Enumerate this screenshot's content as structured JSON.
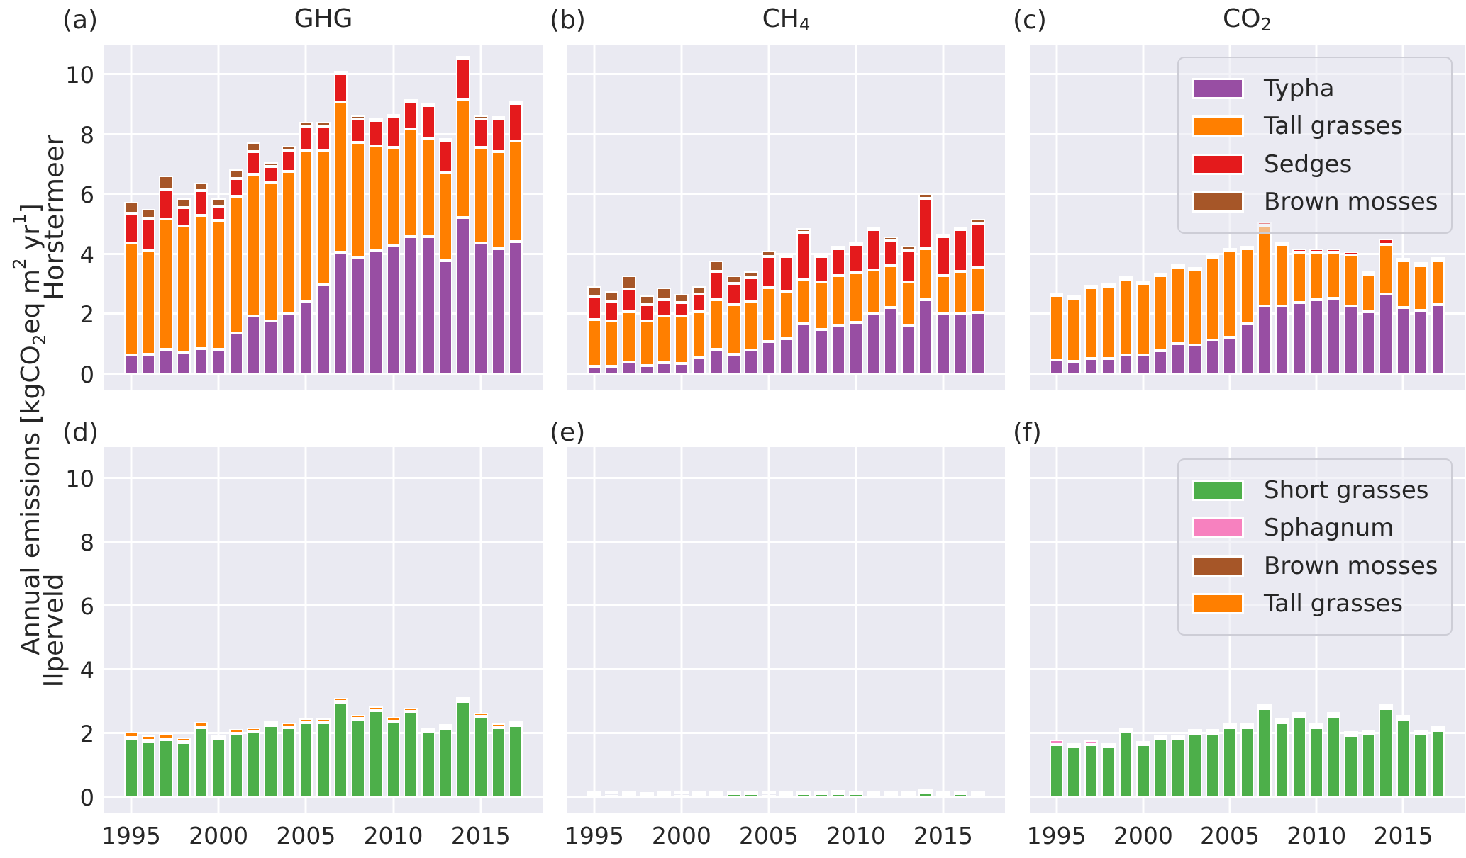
{
  "row_labels": {
    "top": "Horstermeer",
    "bottom": "Ilperveld"
  },
  "ylabel": {
    "p1": "Annual emissions [kgCO",
    "s1": "2",
    "p2": "eq m",
    "s2": "2",
    "p3": " yr",
    "s3": "1",
    "p4": "]"
  },
  "titles": {
    "a": {
      "text": "GHG",
      "sub": ""
    },
    "b": {
      "text": "CH",
      "sub": "4"
    },
    "c": {
      "text": "CO",
      "sub": "2"
    }
  },
  "letters": {
    "a": "(a)",
    "b": "(b)",
    "c": "(c)",
    "d": "(d)",
    "e": "(e)",
    "f": "(f)"
  },
  "colors": {
    "background": "#ffffff",
    "panel_bg": "#eaeaf2",
    "grid": "#ffffff",
    "text": "#262626",
    "typha": "#984ea3",
    "tall_grasses": "#ff7f00",
    "sedges": "#e41a1c",
    "brown_mosses": "#a65628",
    "short_grasses": "#4daf4a",
    "sphagnum": "#f781bf"
  },
  "legend_top": [
    {
      "label": "Typha",
      "color_key": "typha"
    },
    {
      "label": "Tall grasses",
      "color_key": "tall_grasses"
    },
    {
      "label": "Sedges",
      "color_key": "sedges"
    },
    {
      "label": "Brown mosses",
      "color_key": "brown_mosses"
    }
  ],
  "legend_bottom": [
    {
      "label": "Short grasses",
      "color_key": "short_grasses"
    },
    {
      "label": "Sphagnum",
      "color_key": "sphagnum"
    },
    {
      "label": "Brown mosses",
      "color_key": "brown_mosses"
    },
    {
      "label": "Tall grasses",
      "color_key": "tall_grasses"
    }
  ],
  "axes": {
    "ylim": [
      -0.5,
      11.0
    ],
    "yticks": [
      0,
      2,
      4,
      6,
      8,
      10
    ],
    "xticks": [
      1995,
      2000,
      2005,
      2010,
      2015
    ],
    "x_offset_steps": 1.54,
    "x_total_steps": 25.08,
    "bar_width_steps": 0.8,
    "grid": true
  },
  "chart_data": [
    {
      "id": "a",
      "type": "bar",
      "stacked": true,
      "site": "Horstermeer",
      "gas": "GHG",
      "categories": [
        1995,
        1996,
        1997,
        1998,
        1999,
        2000,
        2001,
        2002,
        2003,
        2004,
        2005,
        2006,
        2007,
        2008,
        2009,
        2010,
        2011,
        2012,
        2013,
        2014,
        2015,
        2016,
        2017
      ],
      "series": [
        {
          "name": "Typha",
          "color_key": "typha",
          "values": [
            0.65,
            0.68,
            0.85,
            0.72,
            0.88,
            0.85,
            1.4,
            1.95,
            1.8,
            2.05,
            2.45,
            3.0,
            4.1,
            3.9,
            4.15,
            4.3,
            4.6,
            4.6,
            3.8,
            5.25,
            4.4,
            4.2,
            4.45
          ]
        },
        {
          "name": "Tall grasses",
          "color_key": "tall_grasses",
          "values": [
            3.75,
            3.45,
            4.35,
            4.25,
            4.45,
            4.3,
            4.55,
            4.75,
            4.6,
            4.75,
            5.05,
            4.5,
            5.0,
            3.85,
            3.5,
            3.3,
            3.6,
            3.3,
            2.95,
            3.95,
            3.2,
            3.25,
            3.35
          ]
        },
        {
          "name": "Sedges",
          "color_key": "sedges",
          "values": [
            1.0,
            1.1,
            1.0,
            0.62,
            0.83,
            0.45,
            0.6,
            0.75,
            0.55,
            0.7,
            0.8,
            0.8,
            0.95,
            0.8,
            0.85,
            1.0,
            0.9,
            1.1,
            1.05,
            1.35,
            0.95,
            1.1,
            1.25
          ]
        },
        {
          "name": "Brown mosses",
          "color_key": "brown_mosses",
          "values": [
            0.38,
            0.3,
            0.45,
            0.3,
            0.25,
            0.3,
            0.3,
            0.3,
            0.15,
            0.15,
            0.15,
            0.15,
            0.08,
            0.1,
            0.08,
            0.1,
            0.1,
            0.08,
            0.1,
            0.1,
            0.1,
            0.08,
            0.1
          ]
        }
      ]
    },
    {
      "id": "b",
      "type": "bar",
      "stacked": true,
      "site": "Horstermeer",
      "gas": "CH4",
      "categories": [
        1995,
        1996,
        1997,
        1998,
        1999,
        2000,
        2001,
        2002,
        2003,
        2004,
        2005,
        2006,
        2007,
        2008,
        2009,
        2010,
        2011,
        2012,
        2013,
        2014,
        2015,
        2016,
        2017
      ],
      "series": [
        {
          "name": "Typha",
          "color_key": "typha",
          "values": [
            0.28,
            0.28,
            0.43,
            0.3,
            0.41,
            0.38,
            0.58,
            0.86,
            0.69,
            0.83,
            1.11,
            1.2,
            1.7,
            1.5,
            1.65,
            1.75,
            2.05,
            2.25,
            1.65,
            2.5,
            2.05,
            2.05,
            2.07
          ]
        },
        {
          "name": "Tall grasses",
          "color_key": "tall_grasses",
          "values": [
            1.57,
            1.52,
            1.67,
            1.5,
            1.54,
            1.57,
            1.52,
            1.64,
            1.66,
            1.62,
            1.79,
            1.6,
            1.5,
            1.6,
            1.65,
            1.65,
            1.45,
            1.4,
            1.45,
            1.7,
            1.25,
            1.4,
            1.53
          ]
        },
        {
          "name": "Sedges",
          "color_key": "sedges",
          "values": [
            0.75,
            0.65,
            0.75,
            0.55,
            0.55,
            0.45,
            0.6,
            0.95,
            0.7,
            0.8,
            1.05,
            1.15,
            1.55,
            0.85,
            0.9,
            0.95,
            1.35,
            0.85,
            1.05,
            1.7,
            1.3,
            1.4,
            1.45
          ]
        },
        {
          "name": "Brown mosses",
          "color_key": "brown_mosses",
          "values": [
            0.35,
            0.35,
            0.45,
            0.3,
            0.4,
            0.3,
            0.25,
            0.35,
            0.25,
            0.2,
            0.2,
            0.1,
            0.15,
            0.1,
            0.1,
            0.1,
            0.1,
            0.1,
            0.15,
            0.15,
            0.1,
            0.1,
            0.15
          ]
        }
      ]
    },
    {
      "id": "c",
      "type": "bar",
      "stacked": true,
      "site": "Horstermeer",
      "gas": "CO2",
      "categories": [
        1995,
        1996,
        1997,
        1998,
        1999,
        2000,
        2001,
        2002,
        2003,
        2004,
        2005,
        2006,
        2007,
        2008,
        2009,
        2010,
        2011,
        2012,
        2013,
        2014,
        2015,
        2016,
        2017
      ],
      "series": [
        {
          "name": "Typha",
          "color_key": "typha",
          "values": [
            0.5,
            0.45,
            0.55,
            0.55,
            0.65,
            0.65,
            0.8,
            1.05,
            1.0,
            1.15,
            1.25,
            1.7,
            2.3,
            2.3,
            2.4,
            2.5,
            2.55,
            2.3,
            2.1,
            2.7,
            2.25,
            2.15,
            2.35
          ]
        },
        {
          "name": "Tall grasses",
          "color_key": "tall_grasses",
          "values": [
            2.15,
            2.1,
            2.35,
            2.4,
            2.55,
            2.4,
            2.5,
            2.55,
            2.5,
            2.75,
            2.9,
            2.5,
            2.7,
            2.05,
            1.7,
            1.6,
            1.55,
            1.7,
            1.25,
            1.65,
            1.55,
            1.5,
            1.45
          ]
        },
        {
          "name": "Sedges",
          "color_key": "sedges",
          "values": [
            0.08,
            0.05,
            0.06,
            0.06,
            0.06,
            0.06,
            0.06,
            0.06,
            0.06,
            0.06,
            0.06,
            0.06,
            0.1,
            0.1,
            0.1,
            0.1,
            0.1,
            0.12,
            0.08,
            0.2,
            0.1,
            0.1,
            0.12
          ]
        },
        {
          "name": "Brown mosses",
          "color_key": "brown_mosses",
          "values": [
            0,
            0,
            0,
            0,
            0,
            0,
            0,
            0,
            0,
            0,
            0,
            0,
            0,
            0,
            0,
            0,
            0,
            0,
            0,
            0,
            0,
            0,
            0
          ]
        }
      ]
    },
    {
      "id": "d",
      "type": "bar",
      "stacked": true,
      "site": "Ilperveld",
      "gas": "GHG",
      "categories": [
        1995,
        1996,
        1997,
        1998,
        1999,
        2000,
        2001,
        2002,
        2003,
        2004,
        2005,
        2006,
        2007,
        2008,
        2009,
        2010,
        2011,
        2012,
        2013,
        2014,
        2015,
        2016,
        2017
      ],
      "series": [
        {
          "name": "Short grasses",
          "color_key": "short_grasses",
          "values": [
            1.85,
            1.78,
            1.82,
            1.72,
            2.2,
            1.85,
            2.0,
            2.05,
            2.25,
            2.2,
            2.35,
            2.35,
            3.0,
            2.45,
            2.72,
            2.38,
            2.68,
            2.08,
            2.18,
            3.02,
            2.52,
            2.2,
            2.25
          ]
        },
        {
          "name": "Sphagnum",
          "color_key": "sphagnum",
          "values": [
            0.02,
            0.02,
            0.02,
            0.02,
            0.02,
            0.02,
            0.02,
            0.02,
            0.02,
            0.02,
            0.02,
            0.02,
            0.02,
            0.02,
            0.02,
            0.02,
            0.02,
            0.02,
            0.02,
            0.02,
            0.02,
            0.02,
            0.02
          ]
        },
        {
          "name": "Brown mosses",
          "color_key": "brown_mosses",
          "values": [
            0,
            0,
            0,
            0,
            0,
            0,
            0,
            0,
            0,
            0,
            0,
            0,
            0,
            0,
            0,
            0,
            0,
            0,
            0,
            0,
            0,
            0,
            0
          ]
        },
        {
          "name": "Tall grasses",
          "color_key": "tall_grasses",
          "values": [
            0.18,
            0.15,
            0.16,
            0.14,
            0.15,
            0.1,
            0.13,
            0.13,
            0.13,
            0.12,
            0.12,
            0.12,
            0.1,
            0.12,
            0.12,
            0.12,
            0.12,
            0.1,
            0.1,
            0.1,
            0.12,
            0.1,
            0.12
          ]
        }
      ]
    },
    {
      "id": "e",
      "type": "bar",
      "stacked": true,
      "site": "Ilperveld",
      "gas": "CH4",
      "categories": [
        1995,
        1996,
        1997,
        1998,
        1999,
        2000,
        2001,
        2002,
        2003,
        2004,
        2005,
        2006,
        2007,
        2008,
        2009,
        2010,
        2011,
        2012,
        2013,
        2014,
        2015,
        2016,
        2017
      ],
      "series": [
        {
          "name": "Short grasses",
          "color_key": "short_grasses",
          "values": [
            0.1,
            0.09,
            0.08,
            0.06,
            0.1,
            0.09,
            0.08,
            0.11,
            0.12,
            0.12,
            0.09,
            0.1,
            0.12,
            0.12,
            0.13,
            0.12,
            0.1,
            0.08,
            0.11,
            0.15,
            0.11,
            0.12,
            0.1
          ]
        },
        {
          "name": "Brown mosses",
          "color_key": "brown_mosses",
          "values": [
            0,
            0,
            0,
            0,
            0,
            0,
            0,
            0,
            0,
            0,
            0,
            0,
            0,
            0,
            0,
            0,
            0,
            0,
            0,
            0,
            0,
            0,
            0
          ]
        },
        {
          "name": "Tall grasses",
          "color_key": "tall_grasses",
          "values": [
            0.01,
            0.01,
            0.01,
            0.01,
            0.01,
            0.01,
            0.01,
            0.01,
            0.01,
            0.01,
            0.01,
            0.01,
            0.01,
            0.01,
            0.01,
            0.01,
            0.01,
            0.01,
            0.01,
            0.01,
            0.01,
            0.01,
            0.01
          ]
        },
        {
          "name": "Sphagnum",
          "color_key": "sphagnum",
          "values": [
            0.05,
            0.04,
            0.03,
            0.03,
            0.04,
            0.03,
            0.03,
            0.05,
            0.05,
            0.06,
            0.04,
            0.04,
            0.04,
            0.05,
            0.05,
            0.04,
            0.03,
            0.02,
            0.05,
            0.07,
            0.03,
            0.03,
            0.02
          ]
        }
      ]
    },
    {
      "id": "f",
      "type": "bar",
      "stacked": true,
      "site": "Ilperveld",
      "gas": "CO2",
      "categories": [
        1995,
        1996,
        1997,
        1998,
        1999,
        2000,
        2001,
        2002,
        2003,
        2004,
        2005,
        2006,
        2007,
        2008,
        2009,
        2010,
        2011,
        2012,
        2013,
        2014,
        2015,
        2016,
        2017
      ],
      "series": [
        {
          "name": "Short grasses",
          "color_key": "short_grasses",
          "values": [
            1.65,
            1.6,
            1.65,
            1.6,
            2.05,
            1.65,
            1.85,
            1.85,
            2.0,
            2.0,
            2.2,
            2.2,
            2.8,
            2.35,
            2.55,
            2.2,
            2.55,
            1.95,
            2.0,
            2.8,
            2.45,
            2.0,
            2.1
          ]
        },
        {
          "name": "Brown mosses",
          "color_key": "brown_mosses",
          "values": [
            0,
            0,
            0,
            0,
            0,
            0,
            0,
            0,
            0,
            0,
            0,
            0,
            0,
            0,
            0,
            0,
            0,
            0,
            0,
            0,
            0,
            0,
            0
          ]
        },
        {
          "name": "Tall grasses",
          "color_key": "tall_grasses",
          "values": [
            0.04,
            0.03,
            0.04,
            0.03,
            0.05,
            0.03,
            0.04,
            0.04,
            0.05,
            0.05,
            0.06,
            0.06,
            0.05,
            0.06,
            0.05,
            0.06,
            0.05,
            0.04,
            0.04,
            0.05,
            0.05,
            0.04,
            0.05
          ]
        },
        {
          "name": "Sphagnum",
          "color_key": "sphagnum",
          "values": [
            0.12,
            0.1,
            0.1,
            0.1,
            0.05,
            0.06,
            0.06,
            0.06,
            0.05,
            0.05,
            0.04,
            0.04,
            0.02,
            0.04,
            0.02,
            0.04,
            0.02,
            0.05,
            0.06,
            0.02,
            0.02,
            0.05,
            0.08
          ]
        }
      ]
    }
  ]
}
